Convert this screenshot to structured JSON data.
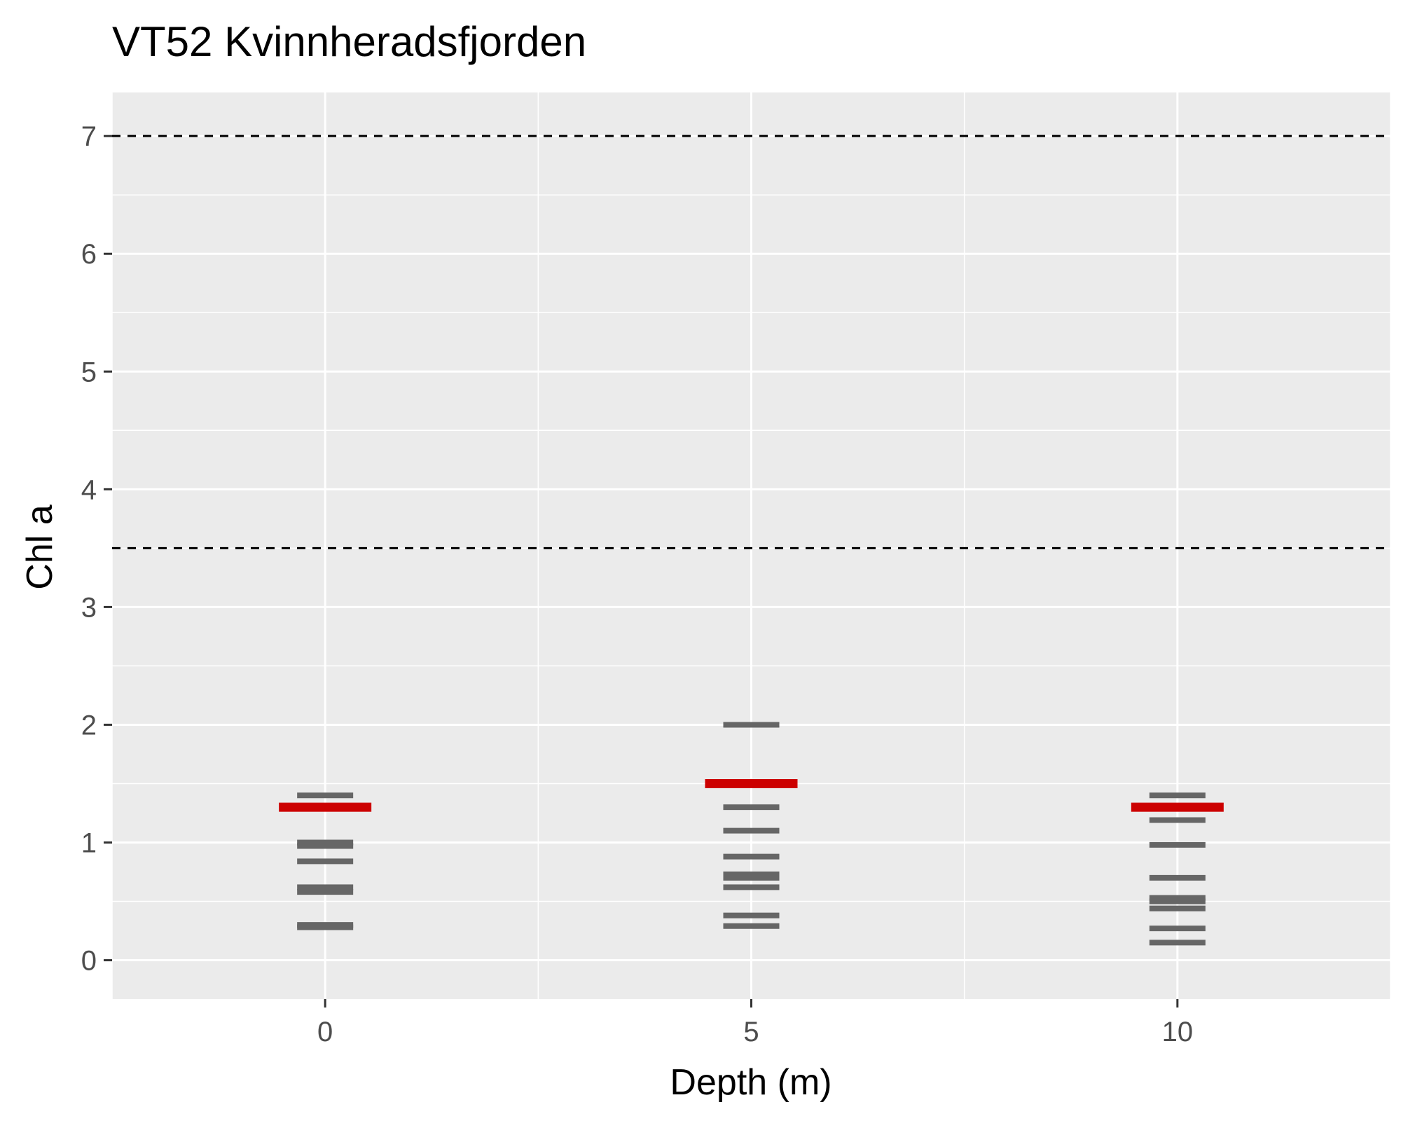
{
  "chart_data": {
    "type": "scatter",
    "title": "VT52 Kvinnheradsfjorden",
    "xlabel": "Depth (m)",
    "ylabel": "Chl a",
    "xlim": [
      -2.5,
      12.5
    ],
    "ylim": [
      -0.33,
      7.37
    ],
    "x_ticks": [
      0,
      5,
      10
    ],
    "y_ticks": [
      0,
      1,
      2,
      3,
      4,
      5,
      6,
      7
    ],
    "grid": true,
    "reference_lines": [
      3.5,
      7
    ],
    "series": [
      {
        "marker": "dash",
        "color": "#666666",
        "points": [
          {
            "x": 0,
            "y": 1.4
          },
          {
            "x": 0,
            "y": 1.0
          },
          {
            "x": 0,
            "y": 0.97
          },
          {
            "x": 0,
            "y": 0.84
          },
          {
            "x": 0,
            "y": 0.62
          },
          {
            "x": 0,
            "y": 0.58
          },
          {
            "x": 0,
            "y": 0.3
          },
          {
            "x": 0,
            "y": 0.28
          },
          {
            "x": 5,
            "y": 2.0
          },
          {
            "x": 5,
            "y": 1.3
          },
          {
            "x": 5,
            "y": 1.1
          },
          {
            "x": 5,
            "y": 0.88
          },
          {
            "x": 5,
            "y": 0.73
          },
          {
            "x": 5,
            "y": 0.7
          },
          {
            "x": 5,
            "y": 0.62
          },
          {
            "x": 5,
            "y": 0.38
          },
          {
            "x": 5,
            "y": 0.29
          },
          {
            "x": 10,
            "y": 1.4
          },
          {
            "x": 10,
            "y": 1.19
          },
          {
            "x": 10,
            "y": 0.98
          },
          {
            "x": 10,
            "y": 0.7
          },
          {
            "x": 10,
            "y": 0.53
          },
          {
            "x": 10,
            "y": 0.5
          },
          {
            "x": 10,
            "y": 0.44
          },
          {
            "x": 10,
            "y": 0.27
          },
          {
            "x": 10,
            "y": 0.15
          }
        ]
      },
      {
        "marker": "dash",
        "color": "#cc0000",
        "points": [
          {
            "x": 0,
            "y": 1.3
          },
          {
            "x": 5,
            "y": 1.5
          },
          {
            "x": 10,
            "y": 1.3
          }
        ]
      }
    ]
  }
}
